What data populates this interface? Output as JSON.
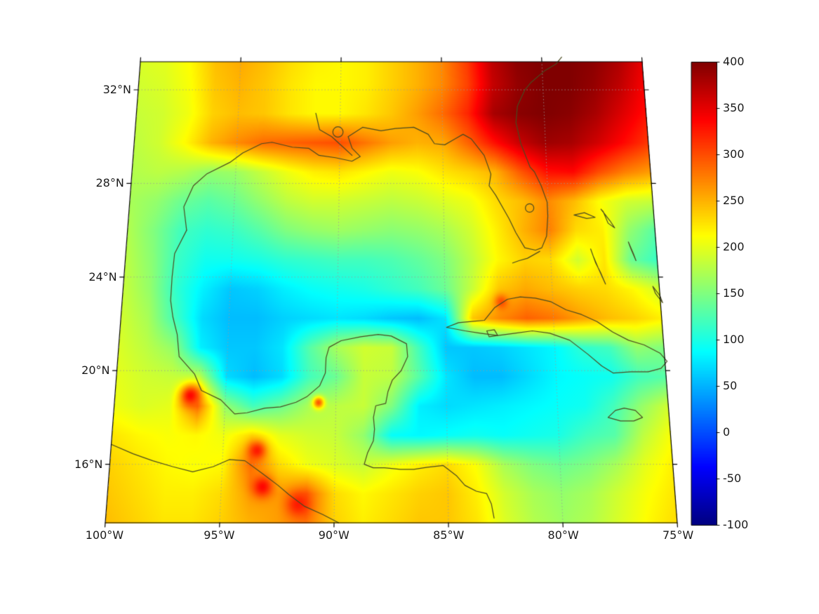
{
  "figure": {
    "background": "#ffffff",
    "border_color": "#000000",
    "coastline_color": "#4a4a20",
    "grid_color": "#9a9a9a",
    "label_color": "#1a1a1a"
  },
  "axes": {
    "lat_ticks": [
      {
        "value": 32,
        "label": "32°N"
      },
      {
        "value": 28,
        "label": "28°N"
      },
      {
        "value": 24,
        "label": "24°N"
      },
      {
        "value": 20,
        "label": "20°N"
      },
      {
        "value": 16,
        "label": "16°N"
      }
    ],
    "lon_ticks": [
      {
        "value": 100,
        "label": "100°W"
      },
      {
        "value": 95,
        "label": "95°W"
      },
      {
        "value": 90,
        "label": "90°W"
      },
      {
        "value": 85,
        "label": "85°W"
      },
      {
        "value": 80,
        "label": "80°W"
      },
      {
        "value": 75,
        "label": "75°W"
      }
    ],
    "graticule_lons": [
      95,
      90,
      85,
      80
    ],
    "graticule_lats": [
      16,
      20,
      24,
      28,
      32
    ]
  },
  "colorbar": {
    "min": -100,
    "max": 400,
    "ticks": [
      {
        "value": 400,
        "label": "400"
      },
      {
        "value": 350,
        "label": "350"
      },
      {
        "value": 300,
        "label": "300"
      },
      {
        "value": 250,
        "label": "250"
      },
      {
        "value": 200,
        "label": "200"
      },
      {
        "value": 150,
        "label": "150"
      },
      {
        "value": 100,
        "label": "100"
      },
      {
        "value": 50,
        "label": "50"
      },
      {
        "value": 0,
        "label": "0"
      },
      {
        "value": -50,
        "label": "-50"
      },
      {
        "value": -100,
        "label": "-100"
      }
    ]
  },
  "chart_data": {
    "type": "heatmap",
    "colormap": "jet",
    "value_range": [
      -100,
      400
    ],
    "region": "Gulf of Mexico / Caribbean",
    "projection": {
      "lon_west": 100,
      "lon_east": 75,
      "lat_min": 13.5,
      "lat_max": 33.2
    },
    "grid": {
      "lon_start": 100,
      "lon_step": 1.25,
      "cols": 21,
      "lat_start": 33.5,
      "lat_step": 1.25,
      "rows": 17,
      "values": [
        [
          195,
          200,
          215,
          245,
          255,
          245,
          230,
          220,
          215,
          220,
          235,
          250,
          270,
          310,
          370,
          395,
          400,
          400,
          395,
          380,
          350
        ],
        [
          190,
          195,
          210,
          240,
          250,
          240,
          225,
          215,
          215,
          220,
          235,
          250,
          270,
          305,
          365,
          390,
          400,
          400,
          390,
          370,
          340
        ],
        [
          185,
          190,
          205,
          235,
          245,
          240,
          225,
          215,
          215,
          225,
          240,
          260,
          285,
          320,
          380,
          395,
          400,
          395,
          380,
          355,
          330
        ],
        [
          180,
          190,
          215,
          250,
          270,
          285,
          290,
          295,
          300,
          280,
          260,
          250,
          255,
          290,
          330,
          365,
          385,
          380,
          360,
          335,
          310
        ],
        [
          175,
          180,
          175,
          160,
          165,
          185,
          205,
          220,
          225,
          215,
          205,
          210,
          225,
          235,
          250,
          295,
          330,
          335,
          300,
          275,
          260
        ],
        [
          170,
          160,
          140,
          130,
          140,
          160,
          180,
          190,
          190,
          185,
          180,
          185,
          195,
          205,
          230,
          245,
          270,
          245,
          210,
          190,
          185
        ],
        [
          175,
          150,
          120,
          110,
          115,
          130,
          150,
          160,
          165,
          160,
          155,
          160,
          170,
          190,
          220,
          250,
          275,
          230,
          220,
          160,
          130
        ],
        [
          180,
          155,
          115,
          95,
          95,
          100,
          110,
          115,
          120,
          120,
          125,
          135,
          150,
          180,
          215,
          235,
          230,
          190,
          225,
          140,
          115
        ],
        [
          185,
          160,
          110,
          80,
          60,
          65,
          80,
          90,
          95,
          100,
          110,
          120,
          140,
          185,
          240,
          255,
          245,
          235,
          230,
          215,
          190
        ],
        [
          190,
          170,
          120,
          70,
          55,
          55,
          65,
          70,
          75,
          70,
          60,
          55,
          75,
          240,
          270,
          290,
          280,
          260,
          245,
          235,
          220
        ],
        [
          195,
          180,
          160,
          80,
          60,
          60,
          75,
          130,
          170,
          190,
          185,
          120,
          60,
          60,
          65,
          75,
          85,
          110,
          120,
          160,
          150
        ],
        [
          200,
          190,
          185,
          180,
          70,
          55,
          70,
          120,
          140,
          185,
          180,
          130,
          75,
          55,
          55,
          70,
          85,
          90,
          95,
          120,
          130
        ],
        [
          205,
          195,
          200,
          280,
          160,
          120,
          140,
          170,
          180,
          185,
          150,
          80,
          70,
          75,
          80,
          85,
          90,
          95,
          120,
          160,
          190
        ],
        [
          225,
          215,
          210,
          215,
          205,
          230,
          200,
          190,
          185,
          160,
          90,
          85,
          90,
          95,
          90,
          95,
          100,
          120,
          130,
          180,
          210
        ],
        [
          235,
          225,
          215,
          210,
          215,
          285,
          230,
          205,
          195,
          185,
          205,
          220,
          230,
          210,
          170,
          150,
          140,
          150,
          170,
          200,
          220
        ],
        [
          240,
          230,
          220,
          220,
          230,
          260,
          260,
          290,
          230,
          215,
          225,
          235,
          240,
          220,
          190,
          170,
          160,
          170,
          190,
          210,
          225
        ],
        [
          245,
          235,
          225,
          225,
          235,
          250,
          260,
          280,
          235,
          220,
          230,
          240,
          240,
          225,
          195,
          175,
          165,
          175,
          195,
          215,
          230
        ]
      ]
    },
    "hotspots": [
      {
        "lon": 96.6,
        "lat": 18.95,
        "peak": 335,
        "radius": 0.45
      },
      {
        "lon": 93.5,
        "lat": 16.6,
        "peak": 325,
        "radius": 0.4
      },
      {
        "lon": 93.2,
        "lat": 15.05,
        "peak": 335,
        "radius": 0.45
      },
      {
        "lon": 91.6,
        "lat": 14.3,
        "peak": 325,
        "radius": 0.5
      },
      {
        "lon": 90.8,
        "lat": 18.65,
        "peak": 295,
        "radius": 0.25
      },
      {
        "lon": 82.4,
        "lat": 22.95,
        "peak": 300,
        "radius": 0.3
      }
    ],
    "coastlines": [
      [
        [
          97.2,
          26.0
        ],
        [
          97.4,
          27.0
        ],
        [
          97.0,
          27.9
        ],
        [
          96.4,
          28.4
        ],
        [
          95.3,
          28.9
        ],
        [
          94.7,
          29.3
        ],
        [
          93.8,
          29.7
        ],
        [
          93.3,
          29.76
        ],
        [
          92.3,
          29.55
        ],
        [
          91.5,
          29.5
        ],
        [
          91.0,
          29.2
        ],
        [
          90.2,
          29.1
        ],
        [
          89.4,
          28.95
        ],
        [
          89.0,
          29.15
        ],
        [
          89.4,
          29.5
        ],
        [
          89.6,
          30.0
        ],
        [
          88.9,
          30.4
        ],
        [
          88.0,
          30.25
        ],
        [
          87.3,
          30.35
        ],
        [
          86.4,
          30.4
        ],
        [
          85.7,
          30.1
        ],
        [
          85.4,
          29.7
        ],
        [
          84.9,
          29.65
        ],
        [
          84.4,
          29.9
        ],
        [
          84.0,
          30.1
        ],
        [
          83.6,
          29.9
        ],
        [
          83.0,
          29.2
        ],
        [
          82.7,
          28.4
        ],
        [
          82.8,
          27.9
        ],
        [
          82.5,
          27.5
        ],
        [
          81.9,
          26.5
        ],
        [
          81.6,
          25.9
        ],
        [
          81.2,
          25.25
        ],
        [
          80.7,
          25.15
        ],
        [
          80.4,
          25.25
        ],
        [
          80.15,
          25.75
        ],
        [
          80.05,
          26.6
        ],
        [
          80.05,
          27.2
        ],
        [
          80.3,
          27.9
        ],
        [
          80.6,
          28.5
        ],
        [
          80.8,
          28.7
        ],
        [
          81.2,
          29.7
        ],
        [
          81.4,
          30.6
        ],
        [
          81.3,
          31.3
        ],
        [
          80.9,
          32.0
        ],
        [
          80.6,
          32.3
        ],
        [
          79.9,
          32.8
        ],
        [
          79.3,
          33.1
        ],
        [
          79.0,
          33.4
        ]
      ],
      [
        [
          97.2,
          26.0
        ],
        [
          97.7,
          25.0
        ],
        [
          97.75,
          24.0
        ],
        [
          97.75,
          23.0
        ],
        [
          97.6,
          22.3
        ],
        [
          97.35,
          21.55
        ],
        [
          97.2,
          20.6
        ],
        [
          96.45,
          19.85
        ],
        [
          96.1,
          19.15
        ],
        [
          95.2,
          18.75
        ],
        [
          94.55,
          18.15
        ],
        [
          94.0,
          18.2
        ],
        [
          93.2,
          18.4
        ],
        [
          92.5,
          18.45
        ],
        [
          91.8,
          18.65
        ],
        [
          91.3,
          18.9
        ],
        [
          90.75,
          19.35
        ],
        [
          90.5,
          19.9
        ],
        [
          90.48,
          20.55
        ],
        [
          90.35,
          21.0
        ],
        [
          89.8,
          21.28
        ],
        [
          88.9,
          21.45
        ],
        [
          88.1,
          21.55
        ],
        [
          87.5,
          21.48
        ],
        [
          86.8,
          21.15
        ],
        [
          86.75,
          20.6
        ],
        [
          87.05,
          20.0
        ],
        [
          87.45,
          19.6
        ],
        [
          87.65,
          19.1
        ],
        [
          87.75,
          18.6
        ],
        [
          88.2,
          18.5
        ],
        [
          88.3,
          18.0
        ],
        [
          88.25,
          17.5
        ],
        [
          88.3,
          17.0
        ],
        [
          88.55,
          16.5
        ],
        [
          88.7,
          16.0
        ],
        [
          88.3,
          15.85
        ],
        [
          87.8,
          15.85
        ],
        [
          87.1,
          15.78
        ],
        [
          86.5,
          15.78
        ],
        [
          85.9,
          15.87
        ],
        [
          85.2,
          15.95
        ],
        [
          84.6,
          15.5
        ],
        [
          84.25,
          15.1
        ],
        [
          83.75,
          14.85
        ],
        [
          83.3,
          14.75
        ],
        [
          83.1,
          14.3
        ],
        [
          83.0,
          13.7
        ]
      ],
      [
        [
          100.0,
          16.85
        ],
        [
          99.0,
          16.45
        ],
        [
          98.1,
          16.15
        ],
        [
          97.2,
          15.9
        ],
        [
          96.3,
          15.68
        ],
        [
          95.4,
          15.9
        ],
        [
          94.7,
          16.2
        ],
        [
          94.0,
          16.15
        ],
        [
          93.2,
          15.6
        ],
        [
          92.5,
          15.1
        ],
        [
          92.0,
          14.7
        ],
        [
          91.3,
          14.2
        ],
        [
          90.5,
          13.85
        ],
        [
          89.8,
          13.5
        ]
      ],
      [
        [
          84.95,
          21.85
        ],
        [
          84.4,
          22.05
        ],
        [
          83.8,
          22.1
        ],
        [
          83.2,
          22.15
        ],
        [
          82.7,
          22.7
        ],
        [
          82.1,
          23.05
        ],
        [
          81.5,
          23.15
        ],
        [
          80.8,
          23.1
        ],
        [
          80.1,
          22.95
        ],
        [
          79.4,
          22.6
        ],
        [
          78.7,
          22.4
        ],
        [
          78.0,
          22.1
        ],
        [
          77.3,
          21.65
        ],
        [
          76.6,
          21.3
        ],
        [
          75.9,
          21.1
        ],
        [
          75.2,
          20.75
        ],
        [
          74.9,
          20.4
        ],
        [
          75.2,
          20.1
        ],
        [
          75.8,
          19.95
        ],
        [
          76.6,
          19.95
        ],
        [
          77.4,
          19.9
        ],
        [
          77.9,
          20.2
        ],
        [
          78.5,
          20.7
        ],
        [
          79.3,
          21.3
        ],
        [
          80.2,
          21.6
        ],
        [
          81.0,
          21.7
        ],
        [
          81.8,
          21.6
        ],
        [
          82.6,
          21.5
        ],
        [
          83.4,
          21.6
        ],
        [
          84.1,
          21.7
        ],
        [
          84.95,
          21.85
        ]
      ],
      [
        [
          77.4,
          18.3
        ],
        [
          77.0,
          18.4
        ],
        [
          76.5,
          18.3
        ],
        [
          76.2,
          18.0
        ],
        [
          76.6,
          17.85
        ],
        [
          77.2,
          17.85
        ],
        [
          77.75,
          18.0
        ],
        [
          77.4,
          18.3
        ]
      ],
      [
        [
          83.1,
          21.7
        ],
        [
          82.75,
          21.75
        ],
        [
          82.6,
          21.5
        ],
        [
          83.0,
          21.45
        ],
        [
          83.1,
          21.7
        ]
      ],
      [
        [
          78.8,
          26.65
        ],
        [
          78.2,
          26.5
        ],
        [
          77.8,
          26.55
        ],
        [
          78.3,
          26.75
        ],
        [
          78.8,
          26.65
        ]
      ],
      [
        [
          77.5,
          26.9
        ],
        [
          77.1,
          26.4
        ],
        [
          76.9,
          26.1
        ],
        [
          77.2,
          26.3
        ],
        [
          77.4,
          26.8
        ],
        [
          77.5,
          26.9
        ]
      ],
      [
        [
          78.1,
          25.2
        ],
        [
          77.9,
          24.6
        ],
        [
          77.7,
          24.2
        ],
        [
          77.5,
          23.7
        ],
        [
          77.8,
          24.4
        ],
        [
          78.0,
          24.9
        ],
        [
          78.1,
          25.2
        ]
      ],
      [
        [
          76.3,
          25.5
        ],
        [
          76.1,
          25.0
        ],
        [
          76.0,
          24.7
        ],
        [
          76.2,
          25.2
        ],
        [
          76.3,
          25.5
        ]
      ],
      [
        [
          75.3,
          23.6
        ],
        [
          75.0,
          23.2
        ],
        [
          74.9,
          22.9
        ],
        [
          75.2,
          23.3
        ],
        [
          75.3,
          23.6
        ]
      ],
      [
        [
          80.5,
          25.1
        ],
        [
          80.8,
          24.95
        ],
        [
          81.1,
          24.8
        ],
        [
          81.5,
          24.7
        ],
        [
          81.8,
          24.6
        ]
      ],
      [
        [
          91.2,
          31.0
        ],
        [
          91.0,
          30.3
        ],
        [
          90.4,
          30.0
        ],
        [
          89.9,
          29.6
        ],
        [
          89.4,
          29.2
        ]
      ]
    ],
    "lakes": [
      {
        "lon": 80.9,
        "lat": 26.95,
        "r": 0.18
      },
      {
        "lon": 90.1,
        "lat": 30.2,
        "r": 0.22
      }
    ]
  }
}
